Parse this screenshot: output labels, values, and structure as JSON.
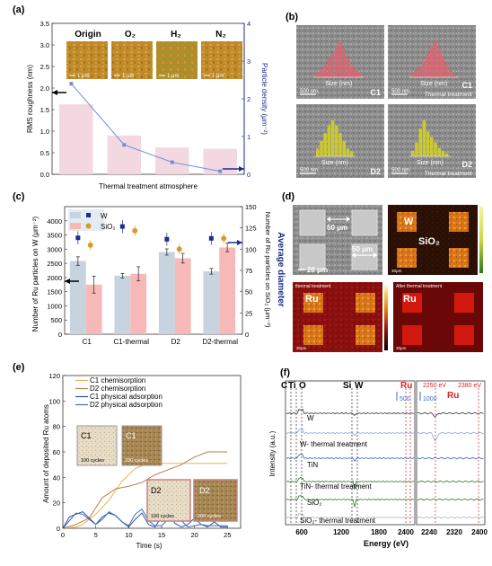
{
  "panels": {
    "a": {
      "label": "(a)",
      "xlabel": "Thermal treatment atmosphere",
      "ylabel_left": "RMS roughness (nm)",
      "ylabel_right": "Particle density (μm⁻²)",
      "afm_labels": [
        "Origin",
        "O₂",
        "H₂",
        "N₂"
      ],
      "scale": "1 μm",
      "yticks_left": [
        "0.0",
        "0.5",
        "1.0",
        "1.5",
        "2.0",
        "2.5",
        "3.0",
        "3.5"
      ],
      "yticks_right": [
        "0",
        "1",
        "2",
        "3",
        "4"
      ]
    },
    "b": {
      "label": "(b)",
      "images": [
        {
          "tag": "C1",
          "scale": "500 nm",
          "hist_x": "Size (nm)",
          "tag2": ""
        },
        {
          "tag": "C1",
          "scale": "500 nm",
          "hist_x": "Size (nm)",
          "tag2": "Thermal treatment"
        },
        {
          "tag": "D2",
          "scale": "500 nm",
          "hist_x": "Size (nm)",
          "tag2": ""
        },
        {
          "tag": "D2",
          "scale": "500 nm",
          "hist_x": "Size (nm)",
          "tag2": "Thermal treatment"
        }
      ]
    },
    "c": {
      "label": "(c)",
      "ylabel_left": "Number of Ru particles on W (μm⁻²)",
      "ylabel_right": "Number of Ru particles on SiO₂ (μm⁻²)",
      "ylabel_right2": "Average diameter",
      "legend": [
        "W",
        "SiO₂"
      ],
      "categories": [
        "C1",
        "C1-thermal",
        "D2",
        "D2-thermal"
      ],
      "yticks_left": [
        "0",
        "500",
        "1000",
        "1500",
        "2000",
        "2500",
        "3000",
        "3500",
        "4000"
      ],
      "yticks_right": [
        "0",
        "25",
        "50",
        "75",
        "100",
        "125",
        "150"
      ]
    },
    "d": {
      "label": "(d)",
      "labels": {
        "w": "W",
        "sio2": "SiO₂",
        "ru": "Ru",
        "ru2": "Ru",
        "m1": "50 μm",
        "m2": "50 μm",
        "m3": "20 μm",
        "s1": "30μm",
        "s2": "30μm",
        "s3": "30μm",
        "before": "thermal treatment",
        "after": "After thermal treatment"
      }
    },
    "e": {
      "label": "(e)",
      "ylabel": "Amount of deposited Ru atoms",
      "xlabel": "Time (s)",
      "legend": [
        "C1 chemisorption",
        "D2 chemisorption",
        "C1 physical adsorption",
        "D2 physical adsorption"
      ],
      "insets": [
        {
          "tag": "C1",
          "cycles": "100 cycles"
        },
        {
          "tag": "C1",
          "cycles": "200 cycles"
        },
        {
          "tag": "D2",
          "cycles": "100 cycles"
        },
        {
          "tag": "D2",
          "cycles": "200 cycles"
        }
      ],
      "xticks": [
        "0",
        "5",
        "10",
        "15",
        "20",
        "25"
      ],
      "yticks": [
        "0",
        "20",
        "40",
        "60",
        "80",
        "100",
        "120"
      ]
    },
    "f": {
      "label": "(f)",
      "ylabel": "Intensity (a.u.)",
      "xlabel": "Energy (eV)",
      "peak_labels": [
        "C",
        "Ti",
        "O",
        "Si",
        "W",
        "Ru",
        "Ru"
      ],
      "spectra": [
        "W",
        "W- thermal treatment",
        "TiN",
        "TiN- thermal treatment",
        "SiO₂",
        "SiO₂- thermal treatment"
      ],
      "scales": [
        "500",
        "1000"
      ],
      "energies": [
        "2250 eV",
        "2380 eV"
      ],
      "xticks_left": [
        "600",
        "1200",
        "1800",
        "2400"
      ],
      "xticks_right": [
        "2240",
        "2320",
        "2400"
      ]
    }
  },
  "chart_data": [
    {
      "type": "bar",
      "panel": "a",
      "categories": [
        "Origin",
        "O₂",
        "H₂",
        "N₂"
      ],
      "series": [
        {
          "name": "RMS roughness",
          "values": [
            1.62,
            0.9,
            0.62,
            0.59
          ]
        },
        {
          "name": "Particle density",
          "values": [
            2.4,
            0.78,
            0.32,
            0.08
          ]
        }
      ],
      "ylim": [
        0,
        3.5
      ],
      "ylim_right": [
        0,
        4
      ]
    },
    {
      "type": "bar",
      "panel": "c",
      "categories": [
        "C1",
        "C1-thermal",
        "D2",
        "D2-thermal"
      ],
      "series": [
        {
          "name": "W",
          "values": [
            2580,
            2060,
            2900,
            2220
          ],
          "err": [
            150,
            80,
            110,
            100
          ]
        },
        {
          "name": "SiO₂",
          "values": [
            1750,
            2130,
            2680,
            3060
          ],
          "err": [
            300,
            250,
            170,
            150
          ]
        }
      ],
      "scatter": [
        {
          "name": "W",
          "values": [
            3400,
            3800,
            3350,
            3380
          ]
        },
        {
          "name": "SiO₂",
          "values": [
            3140,
            3650,
            3000,
            3380
          ]
        }
      ],
      "ylim": [
        0,
        4500
      ],
      "ylim_right": [
        0,
        150
      ]
    },
    {
      "type": "line",
      "panel": "e",
      "xlim": [
        0,
        27
      ],
      "ylim": [
        0,
        120
      ],
      "series": [
        {
          "name": "C1 chemisorption",
          "x": [
            0,
            2,
            3,
            5,
            7,
            9,
            11,
            13,
            15,
            17,
            19,
            21,
            23,
            25
          ],
          "y": [
            0,
            1,
            3,
            11,
            22,
            37,
            47,
            51,
            51,
            51,
            51,
            51,
            51,
            51
          ]
        },
        {
          "name": "D2 chemisorption",
          "x": [
            0,
            2,
            4,
            6,
            8,
            10,
            12,
            14,
            16,
            18,
            20,
            22,
            24,
            25
          ],
          "y": [
            0,
            3,
            8,
            24,
            31,
            33,
            36,
            42,
            46,
            50,
            56,
            60,
            60,
            60
          ]
        },
        {
          "name": "C1 physical adsorption",
          "x": [
            0,
            1,
            2,
            3,
            4,
            5,
            6,
            7,
            8,
            9,
            10,
            11,
            12,
            13,
            14,
            15,
            16,
            17,
            18,
            19,
            20,
            21,
            22,
            23,
            24,
            25
          ],
          "y": [
            0,
            9,
            11,
            13,
            8,
            3,
            9,
            12,
            10,
            5,
            1,
            7,
            12,
            3,
            1,
            9,
            13,
            4,
            1,
            3,
            8,
            3,
            1,
            5,
            1,
            1
          ]
        },
        {
          "name": "D2 physical adsorption",
          "x": [
            0,
            1,
            2,
            3,
            4,
            5,
            6,
            7,
            8,
            9,
            10,
            11,
            12,
            13,
            14,
            15,
            16,
            17,
            18,
            19,
            20,
            21,
            22,
            23,
            24,
            25
          ],
          "y": [
            0,
            6,
            12,
            11,
            7,
            3,
            7,
            13,
            10,
            5,
            2,
            11,
            15,
            6,
            2,
            2,
            7,
            9,
            6,
            1,
            2,
            3,
            2,
            2,
            2,
            2
          ]
        }
      ]
    }
  ],
  "colors": {
    "pink_bar": "#f3d7e1",
    "blue_line": "#6f8be0",
    "navy": "#1a2d8a",
    "w_bar": "#c7d3de",
    "sio2_bar": "#f6b9b8",
    "orange": "#d99a2b",
    "c1_chem": "#e8b54c",
    "d2_chem": "#b87e4a",
    "c1_phys": "#2d4fa6",
    "d2_phys": "#3e6ab0"
  }
}
